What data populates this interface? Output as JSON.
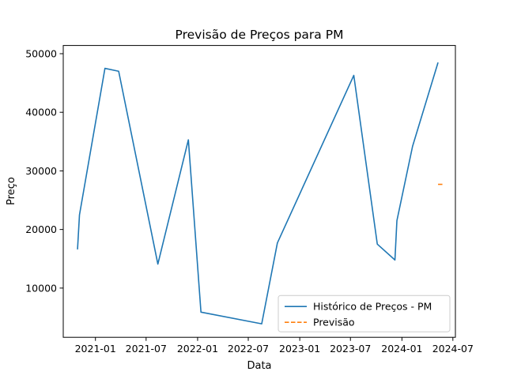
{
  "chart_data": {
    "type": "line",
    "title": "Previsão de Preços para PM",
    "xlabel": "Data",
    "ylabel": "Preço",
    "xlim": [
      "2020-09-08",
      "2024-07-10"
    ],
    "ylim": [
      1600,
      51400
    ],
    "x_ticks": [
      "2021-01",
      "2021-07",
      "2022-01",
      "2022-07",
      "2023-01",
      "2023-07",
      "2024-01",
      "2024-07"
    ],
    "x_tick_dates": [
      "2021-01-01",
      "2021-07-01",
      "2022-01-01",
      "2022-07-01",
      "2023-01-01",
      "2023-07-01",
      "2024-01-01",
      "2024-07-01"
    ],
    "y_ticks": [
      10000,
      20000,
      30000,
      40000,
      50000
    ],
    "y_tick_labels": [
      "10000",
      "20000",
      "30000",
      "40000",
      "50000"
    ],
    "grid": false,
    "legend_position": "lower-right",
    "series": [
      {
        "name": "Histórico de Preços - PM",
        "color": "#1f77b4",
        "style": "solid",
        "points": [
          [
            "2020-10-29",
            16600
          ],
          [
            "2020-11-05",
            22500
          ],
          [
            "2021-02-04",
            47500
          ],
          [
            "2021-03-25",
            47000
          ],
          [
            "2021-08-12",
            14100
          ],
          [
            "2021-11-29",
            35300
          ],
          [
            "2022-01-13",
            5900
          ],
          [
            "2022-08-18",
            3900
          ],
          [
            "2022-10-13",
            17700
          ],
          [
            "2023-07-13",
            46300
          ],
          [
            "2023-10-05",
            17500
          ],
          [
            "2023-12-07",
            14800
          ],
          [
            "2023-12-14",
            21500
          ],
          [
            "2024-02-08",
            34200
          ],
          [
            "2024-05-09",
            48500
          ]
        ]
      },
      {
        "name": "Previsão",
        "color": "#ff7f0e",
        "style": "dashed",
        "points": [
          [
            "2024-05-09",
            27700
          ],
          [
            "2024-05-30",
            27700
          ]
        ]
      }
    ]
  }
}
